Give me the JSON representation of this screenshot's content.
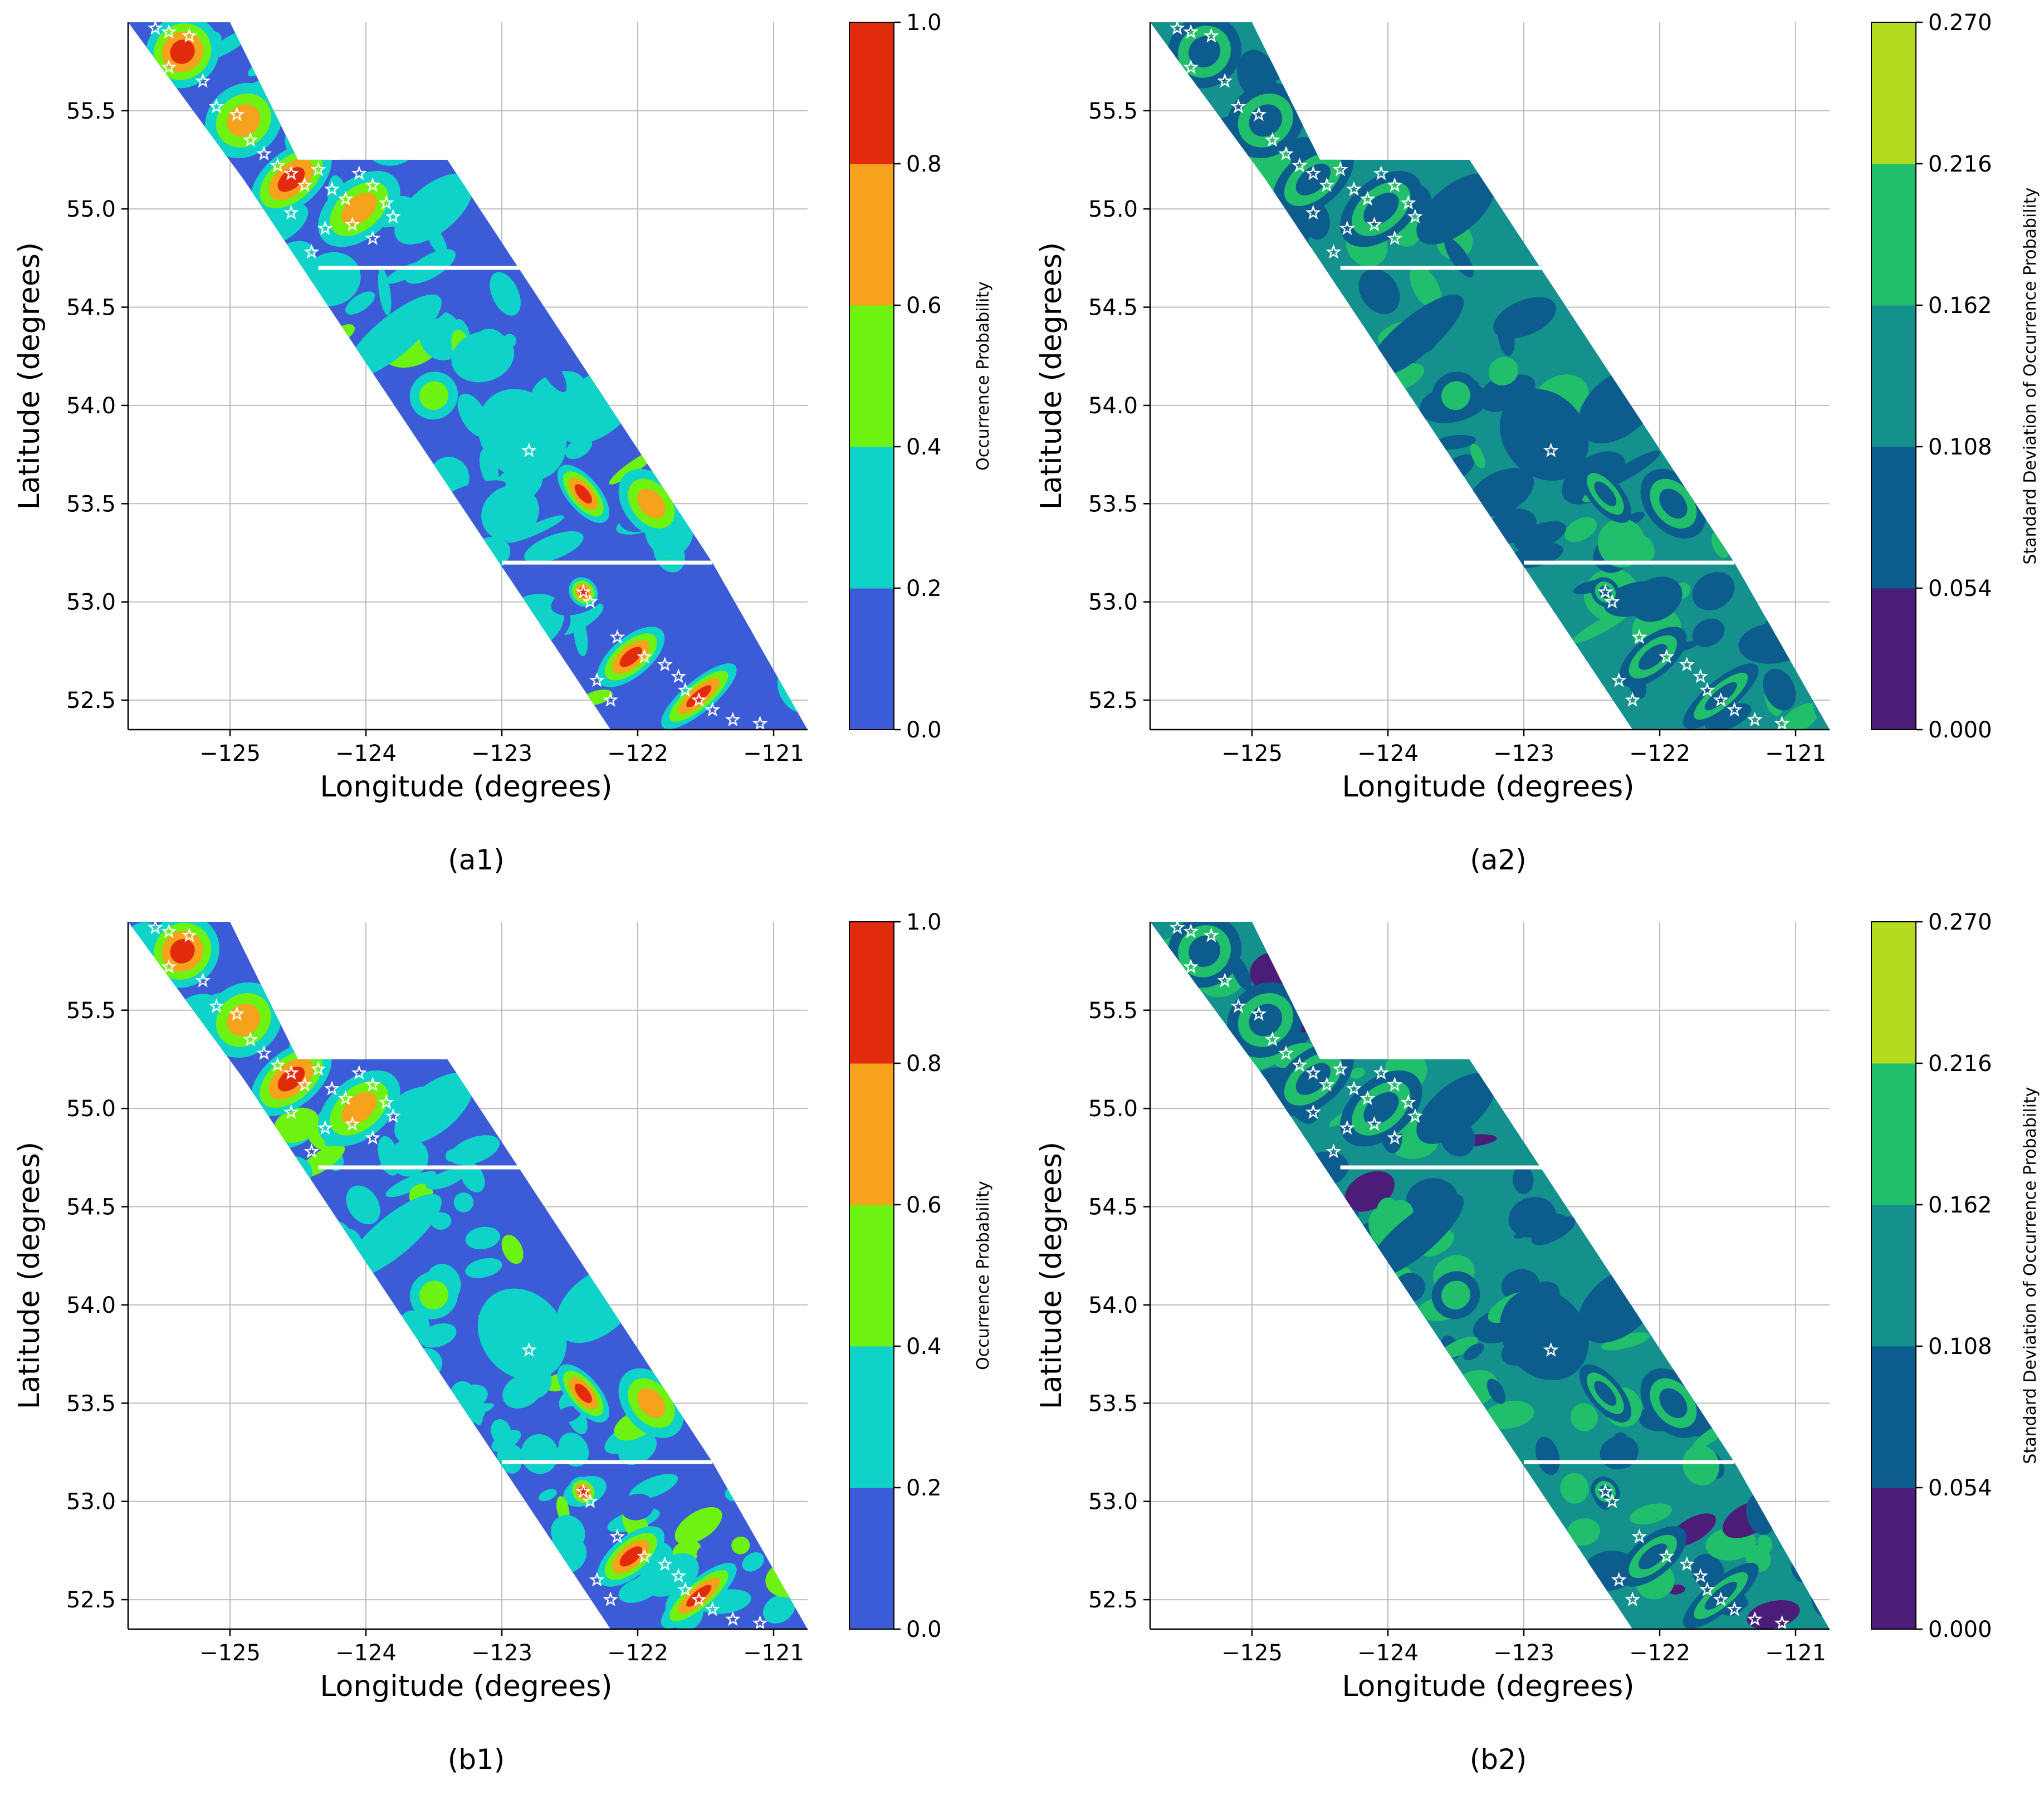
{
  "colors": {
    "probability": [
      "#3c5bd6",
      "#0fd3c9",
      "#6ef211",
      "#f7a21c",
      "#e22a0c"
    ],
    "std_dev": [
      "#4b1c78",
      "#0d5c8e",
      "#14918d",
      "#21bf6c",
      "#b4db20"
    ],
    "marker": "#ffffff",
    "grid": "#bdbdbd"
  },
  "panels": [
    {
      "caption": "(a1)",
      "variant": "probability",
      "detail": "moderate",
      "colorbar_label": "Occurrence Probability",
      "colorbar_ticks": [
        "0.0",
        "0.2",
        "0.4",
        "0.6",
        "0.8",
        "1.0"
      ]
    },
    {
      "caption": "(a2)",
      "variant": "std_dev",
      "detail": "moderate",
      "colorbar_label": "Standard Deviation of Occurrence Probability",
      "colorbar_ticks": [
        "0.000",
        "0.054",
        "0.108",
        "0.162",
        "0.216",
        "0.270"
      ]
    },
    {
      "caption": "(b1)",
      "variant": "probability",
      "detail": "high",
      "colorbar_label": "Occurrence Probability",
      "colorbar_ticks": [
        "0.0",
        "0.2",
        "0.4",
        "0.6",
        "0.8",
        "1.0"
      ]
    },
    {
      "caption": "(b2)",
      "variant": "std_dev",
      "detail": "high",
      "colorbar_label": "Standard Deviation of Occurrence Probability",
      "colorbar_ticks": [
        "0.000",
        "0.054",
        "0.108",
        "0.162",
        "0.216",
        "0.270"
      ]
    }
  ],
  "axes": {
    "xlabel": "Longitude (degrees)",
    "ylabel": "Latitude (degrees)",
    "x_ticks": [
      -125,
      -124,
      -123,
      -122,
      -121
    ],
    "x_tick_labels": [
      "−125",
      "−124",
      "−123",
      "−122",
      "−121"
    ],
    "y_ticks": [
      52.5,
      53.0,
      53.5,
      54.0,
      54.5,
      55.0,
      55.5
    ],
    "y_tick_labels": [
      "52.5",
      "53.0",
      "53.5",
      "54.0",
      "54.5",
      "55.0",
      "55.5"
    ],
    "xlim": [
      -125.75,
      -120.75
    ],
    "ylim": [
      52.35,
      55.95
    ]
  },
  "region": {
    "outline": [
      [
        -125.6,
        55.95
      ],
      [
        -125.0,
        55.95
      ],
      [
        -124.5,
        55.25
      ],
      [
        -123.4,
        55.25
      ],
      [
        -121.45,
        53.2
      ],
      [
        -120.75,
        52.35
      ],
      [
        -122.2,
        52.35
      ],
      [
        -124.9,
        55.15
      ],
      [
        -125.75,
        55.95
      ]
    ],
    "gap_lines": [
      {
        "lat": 54.7,
        "lon_from": -124.35,
        "lon_to": -122.8
      },
      {
        "lat": 53.2,
        "lon_from": -123.0,
        "lon_to": -121.45
      }
    ]
  },
  "hotspots": [
    {
      "lon": -125.35,
      "lat": 55.8,
      "level": 4,
      "rx": 0.28,
      "ry": 0.18
    },
    {
      "lon": -124.9,
      "lat": 55.45,
      "level": 3,
      "rx": 0.3,
      "ry": 0.18
    },
    {
      "lon": -124.55,
      "lat": 55.15,
      "level": 4,
      "rx": 0.35,
      "ry": 0.14
    },
    {
      "lon": -124.05,
      "lat": 55.0,
      "level": 3,
      "rx": 0.35,
      "ry": 0.15
    },
    {
      "lon": -123.5,
      "lat": 55.0,
      "level": 1,
      "rx": 0.35,
      "ry": 0.12
    },
    {
      "lon": -123.5,
      "lat": 54.05,
      "level": 2,
      "rx": 0.18,
      "ry": 0.12
    },
    {
      "lon": -122.85,
      "lat": 53.85,
      "level": 1,
      "rx": 0.3,
      "ry": 0.25
    },
    {
      "lon": -122.4,
      "lat": 53.55,
      "level": 4,
      "rx": 0.12,
      "ry": 0.18
    },
    {
      "lon": -121.9,
      "lat": 53.5,
      "level": 3,
      "rx": 0.2,
      "ry": 0.2
    },
    {
      "lon": -122.4,
      "lat": 53.05,
      "level": 4,
      "rx": 0.1,
      "ry": 0.08
    },
    {
      "lon": -122.05,
      "lat": 52.72,
      "level": 4,
      "rx": 0.3,
      "ry": 0.1
    },
    {
      "lon": -121.55,
      "lat": 52.52,
      "level": 4,
      "rx": 0.35,
      "ry": 0.08
    },
    {
      "lon": -123.8,
      "lat": 54.35,
      "level": 1,
      "rx": 0.45,
      "ry": 0.1
    },
    {
      "lon": -122.3,
      "lat": 54.0,
      "level": 1,
      "rx": 0.35,
      "ry": 0.15
    }
  ],
  "occurrences": [
    {
      "lon": -125.55,
      "lat": 55.92
    },
    {
      "lon": -125.45,
      "lat": 55.9
    },
    {
      "lon": -125.3,
      "lat": 55.88
    },
    {
      "lon": -125.45,
      "lat": 55.72
    },
    {
      "lon": -125.2,
      "lat": 55.65
    },
    {
      "lon": -125.1,
      "lat": 55.52
    },
    {
      "lon": -124.95,
      "lat": 55.48
    },
    {
      "lon": -124.85,
      "lat": 55.35
    },
    {
      "lon": -124.75,
      "lat": 55.28
    },
    {
      "lon": -124.65,
      "lat": 55.22
    },
    {
      "lon": -124.55,
      "lat": 55.18
    },
    {
      "lon": -124.45,
      "lat": 55.12
    },
    {
      "lon": -124.35,
      "lat": 55.2
    },
    {
      "lon": -124.25,
      "lat": 55.1
    },
    {
      "lon": -124.15,
      "lat": 55.05
    },
    {
      "lon": -124.05,
      "lat": 55.18
    },
    {
      "lon": -123.95,
      "lat": 55.12
    },
    {
      "lon": -123.85,
      "lat": 55.03
    },
    {
      "lon": -123.8,
      "lat": 54.96
    },
    {
      "lon": -124.1,
      "lat": 54.92
    },
    {
      "lon": -124.3,
      "lat": 54.9
    },
    {
      "lon": -124.55,
      "lat": 54.98
    },
    {
      "lon": -124.4,
      "lat": 54.78
    },
    {
      "lon": -123.95,
      "lat": 54.85
    },
    {
      "lon": -122.8,
      "lat": 53.77
    },
    {
      "lon": -122.4,
      "lat": 53.05
    },
    {
      "lon": -122.35,
      "lat": 53.0
    },
    {
      "lon": -122.15,
      "lat": 52.82
    },
    {
      "lon": -121.95,
      "lat": 52.72
    },
    {
      "lon": -121.8,
      "lat": 52.68
    },
    {
      "lon": -121.7,
      "lat": 52.62
    },
    {
      "lon": -121.65,
      "lat": 52.55
    },
    {
      "lon": -121.55,
      "lat": 52.5
    },
    {
      "lon": -121.45,
      "lat": 52.45
    },
    {
      "lon": -121.3,
      "lat": 52.4
    },
    {
      "lon": -122.3,
      "lat": 52.6
    },
    {
      "lon": -122.2,
      "lat": 52.5
    },
    {
      "lon": -121.1,
      "lat": 52.38
    }
  ]
}
